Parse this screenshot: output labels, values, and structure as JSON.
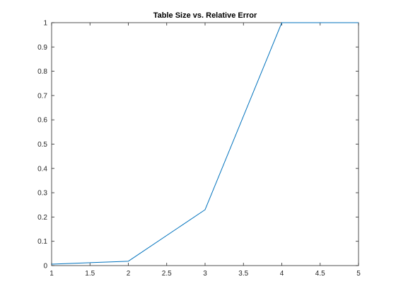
{
  "chart_data": {
    "type": "line",
    "title": "Table Size vs. Relative Error",
    "xlabel": "",
    "ylabel": "",
    "xlim": [
      1,
      5
    ],
    "ylim": [
      0,
      1
    ],
    "x_ticks": [
      1,
      1.5,
      2,
      2.5,
      3,
      3.5,
      4,
      4.5,
      5
    ],
    "x_tick_labels": [
      "1",
      "1.5",
      "2",
      "2.5",
      "3",
      "3.5",
      "4",
      "4.5",
      "5"
    ],
    "y_ticks": [
      0,
      0.1,
      0.2,
      0.3,
      0.4,
      0.5,
      0.6,
      0.7,
      0.8,
      0.9,
      1
    ],
    "y_tick_labels": [
      "0",
      "0.1",
      "0.2",
      "0.3",
      "0.4",
      "0.5",
      "0.6",
      "0.7",
      "0.8",
      "0.9",
      "1"
    ],
    "grid": false,
    "series": [
      {
        "color": "#0072bd",
        "x": [
          1,
          2,
          3,
          4,
          5
        ],
        "y": [
          0.006,
          0.018,
          0.23,
          1.0,
          1.0
        ]
      }
    ]
  }
}
